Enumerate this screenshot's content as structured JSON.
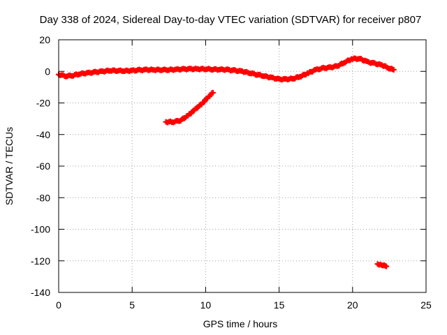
{
  "chart_data": {
    "type": "scatter",
    "title": "Day 338 of 2024, Sidereal Day-to-day VTEC variation (SDTVAR) for receiver p807",
    "xlabel": "GPS time / hours",
    "ylabel": "SDTVAR / TECUs",
    "xlim": [
      0,
      25
    ],
    "ylim": [
      -140,
      20
    ],
    "xticks": [
      0,
      5,
      10,
      15,
      20,
      25
    ],
    "yticks": [
      20,
      0,
      -20,
      -40,
      -60,
      -80,
      -100,
      -120,
      -140
    ],
    "grid": true,
    "marker_color": "#ff0000",
    "series": [
      {
        "name": "main",
        "points": [
          [
            0,
            -2
          ],
          [
            0.5,
            -3
          ],
          [
            1,
            -2.5
          ],
          [
            1.5,
            -1.5
          ],
          [
            2,
            -1
          ],
          [
            2.5,
            -0.5
          ],
          [
            3,
            0
          ],
          [
            3.5,
            0.5
          ],
          [
            4,
            0.5
          ],
          [
            4.5,
            0.3
          ],
          [
            5,
            0.5
          ],
          [
            5.5,
            0.8
          ],
          [
            6,
            1
          ],
          [
            6.5,
            1
          ],
          [
            7,
            1
          ],
          [
            7.5,
            1
          ],
          [
            8,
            1.2
          ],
          [
            8.5,
            1.4
          ],
          [
            9,
            1.5
          ],
          [
            9.5,
            1.5
          ],
          [
            10,
            1.5
          ],
          [
            10.5,
            1.3
          ],
          [
            11,
            1.2
          ],
          [
            11.5,
            1
          ],
          [
            12,
            0.5
          ],
          [
            12.5,
            0
          ],
          [
            13,
            -1
          ],
          [
            13.5,
            -2
          ],
          [
            14,
            -3
          ],
          [
            14.5,
            -4
          ],
          [
            15,
            -5
          ],
          [
            15.5,
            -5
          ],
          [
            16,
            -4.5
          ],
          [
            16.5,
            -3
          ],
          [
            17,
            -1
          ],
          [
            17.5,
            1
          ],
          [
            18,
            2
          ],
          [
            18.5,
            2.5
          ],
          [
            19,
            3.5
          ],
          [
            19.5,
            6
          ],
          [
            20,
            8
          ],
          [
            20.5,
            8
          ],
          [
            21,
            6
          ],
          [
            21.5,
            5
          ],
          [
            22,
            4
          ],
          [
            22.5,
            2
          ],
          [
            22.8,
            1
          ]
        ]
      },
      {
        "name": "descending-arc",
        "points": [
          [
            7.3,
            -32
          ],
          [
            7.8,
            -32
          ],
          [
            8.3,
            -31
          ],
          [
            8.8,
            -28
          ],
          [
            9.3,
            -24
          ],
          [
            9.8,
            -20
          ],
          [
            10.2,
            -16
          ],
          [
            10.5,
            -13.5
          ]
        ]
      },
      {
        "name": "outlier",
        "points": [
          [
            21.7,
            -122
          ],
          [
            22.0,
            -122.5
          ],
          [
            22.3,
            -123.5
          ]
        ]
      }
    ]
  }
}
